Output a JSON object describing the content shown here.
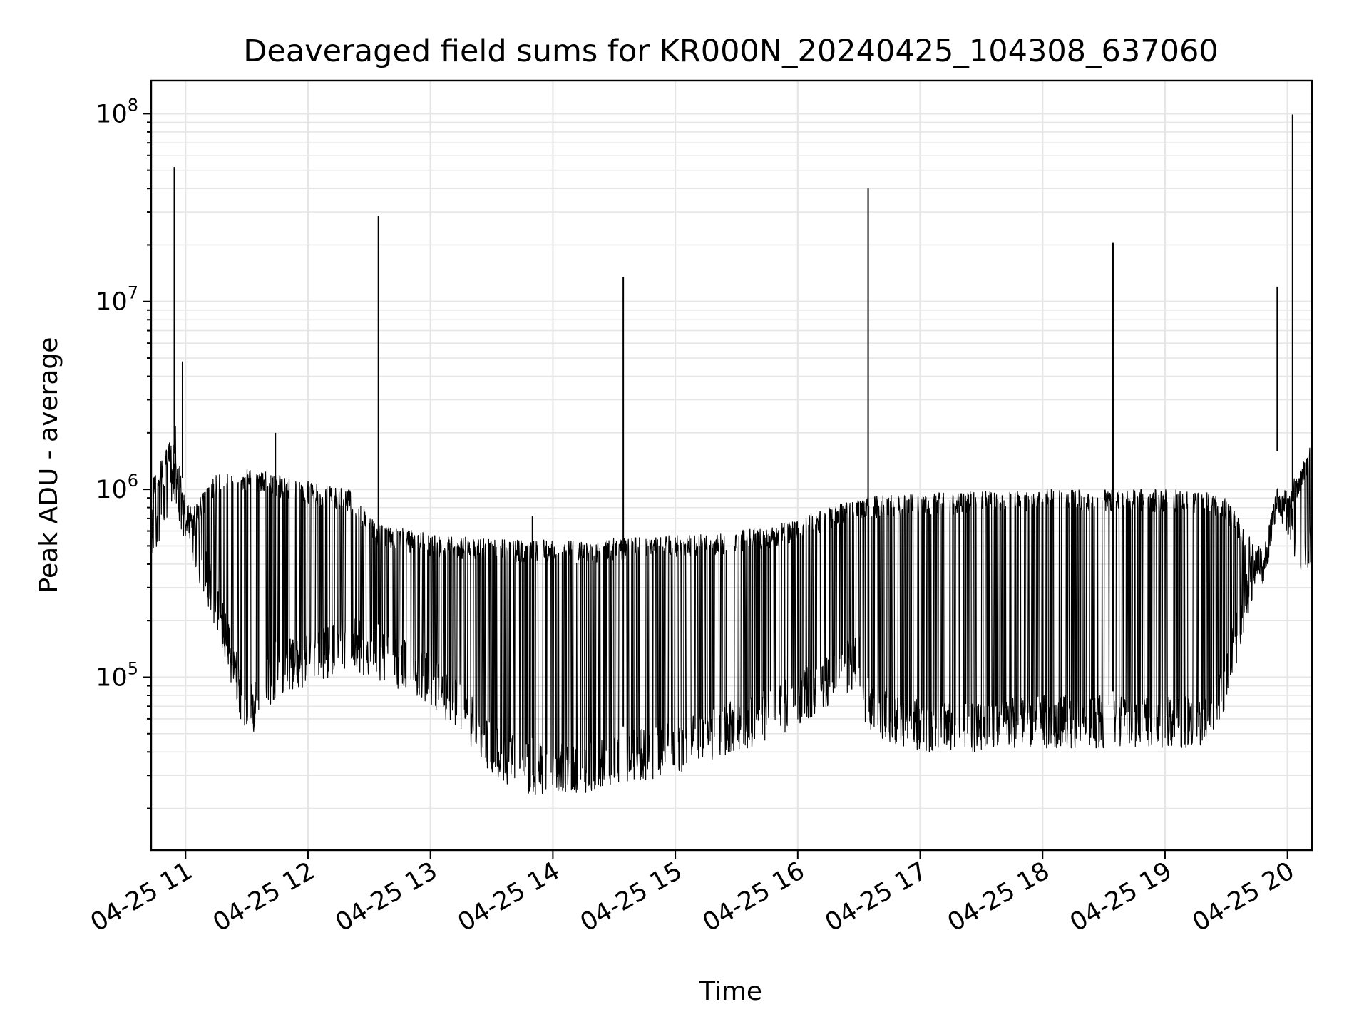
{
  "chart_data": {
    "type": "line",
    "title": "Deaveraged field sums for KR000N_20240425_104308_637060",
    "xlabel": "Time",
    "ylabel": "Peak ADU - average",
    "yscale": "log",
    "x_range": [
      "2024-04-25T10:43:08",
      "2024-04-25T20:12:00"
    ],
    "ylim": [
      12000,
      150000000
    ],
    "grid": true,
    "legend": "none",
    "line_color": "#000000",
    "x_ticks": [
      "04-25 11",
      "04-25 12",
      "04-25 13",
      "04-25 14",
      "04-25 15",
      "04-25 16",
      "04-25 17",
      "04-25 18",
      "04-25 19",
      "04-25 20"
    ],
    "y_ticks": [
      {
        "value": 100000,
        "base": "10",
        "exp": "5"
      },
      {
        "value": 1000000,
        "base": "10",
        "exp": "6"
      },
      {
        "value": 10000000,
        "base": "10",
        "exp": "7"
      },
      {
        "value": 100000000,
        "base": "10",
        "exp": "8"
      }
    ],
    "series": [
      {
        "envelope": {
          "x": [
            "2024-04-25T10:43",
            "2024-04-25T10:55",
            "2024-04-25T11:00",
            "2024-04-25T11:15",
            "2024-04-25T11:30",
            "2024-04-25T11:45",
            "2024-04-25T12:00",
            "2024-04-25T12:20",
            "2024-04-25T12:35",
            "2024-04-25T12:45",
            "2024-04-25T13:00",
            "2024-04-25T13:15",
            "2024-04-25T13:30",
            "2024-04-25T13:45",
            "2024-04-25T14:00",
            "2024-04-25T14:15",
            "2024-04-25T14:30",
            "2024-04-25T14:45",
            "2024-04-25T15:00",
            "2024-04-25T15:15",
            "2024-04-25T15:30",
            "2024-04-25T15:45",
            "2024-04-25T16:00",
            "2024-04-25T16:15",
            "2024-04-25T16:30",
            "2024-04-25T16:34",
            "2024-04-25T16:45",
            "2024-04-25T17:00",
            "2024-04-25T17:30",
            "2024-04-25T18:00",
            "2024-04-25T18:30",
            "2024-04-25T19:00",
            "2024-04-25T19:20",
            "2024-04-25T19:30",
            "2024-04-25T19:40",
            "2024-04-25T19:48",
            "2024-04-25T19:55",
            "2024-04-25T20:05",
            "2024-04-25T20:12"
          ],
          "upper": [
            1100000,
            2200000,
            700000,
            1200000,
            1300000,
            1200000,
            1100000,
            1000000,
            650000,
            620000,
            580000,
            560000,
            540000,
            540000,
            540000,
            530000,
            550000,
            560000,
            570000,
            580000,
            600000,
            630000,
            700000,
            800000,
            900000,
            920000,
            940000,
            950000,
            980000,
            1000000,
            1000000,
            1000000,
            980000,
            900000,
            600000,
            400000,
            900000,
            1200000,
            1800000
          ],
          "lower": [
            400000,
            800000,
            500000,
            180000,
            45000,
            80000,
            90000,
            110000,
            95000,
            85000,
            70000,
            50000,
            30000,
            24000,
            23000,
            24000,
            27000,
            28000,
            30000,
            35000,
            40000,
            45000,
            55000,
            70000,
            90000,
            50000,
            45000,
            40000,
            40000,
            42000,
            42000,
            42000,
            42000,
            70000,
            200000,
            400000,
            800000,
            350000,
            400000
          ]
        }
      }
    ],
    "spikes": [
      {
        "x": "2024-04-25T10:54:30",
        "y": 52000000
      },
      {
        "x": "2024-04-25T10:58:30",
        "y": 4800000
      },
      {
        "x": "2024-04-25T11:44:00",
        "y": 2000000
      },
      {
        "x": "2024-04-25T12:34:30",
        "y": 28500000
      },
      {
        "x": "2024-04-25T13:50:00",
        "y": 720000
      },
      {
        "x": "2024-04-25T14:34:30",
        "y": 13500000
      },
      {
        "x": "2024-04-25T16:34:30",
        "y": 40000000
      },
      {
        "x": "2024-04-25T18:34:30",
        "y": 20500000
      },
      {
        "x": "2024-04-25T19:55:00",
        "y": 12000000
      },
      {
        "x": "2024-04-25T20:02:30",
        "y": 99000000
      }
    ]
  }
}
